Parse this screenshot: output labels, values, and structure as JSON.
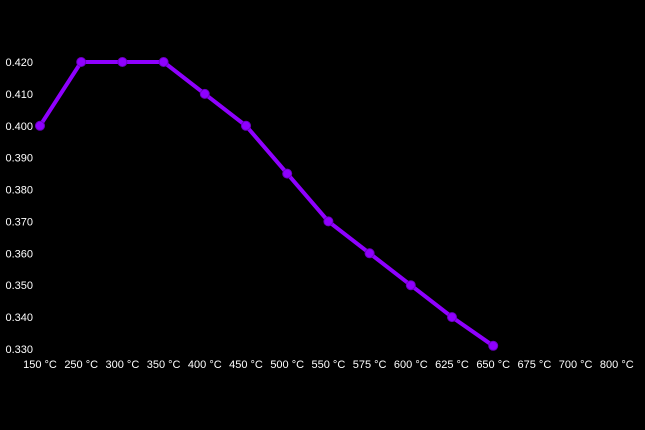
{
  "chart_data": {
    "type": "line",
    "title": "",
    "xlabel": "",
    "ylabel": "",
    "categories": [
      "150 °C",
      "250 °C",
      "300 °C",
      "350 °C",
      "400 °C",
      "450 °C",
      "500 °C",
      "550 °C",
      "575 °C",
      "600 °C",
      "625 °C",
      "650 °C",
      "675 °C",
      "700 °C",
      "800 °C"
    ],
    "series": [
      {
        "name": "value",
        "values": [
          0.4,
          0.42,
          0.42,
          0.42,
          0.41,
          0.4,
          0.385,
          0.37,
          0.36,
          0.35,
          0.34,
          0.331,
          null,
          null,
          null
        ]
      }
    ],
    "ytick_labels": [
      "0.420",
      "0.410",
      "0.400",
      "0.390",
      "0.380",
      "0.370",
      "0.360",
      "0.350",
      "0.340",
      "0.330"
    ],
    "ylim": [
      0.33,
      0.42
    ],
    "grid": "off",
    "legend": "none",
    "colors": {
      "background": "#000000",
      "text": "#ffffff",
      "line": "#8F00FF",
      "marker_fill": "#8F00FF",
      "marker_stroke": "#6C00C4"
    }
  }
}
